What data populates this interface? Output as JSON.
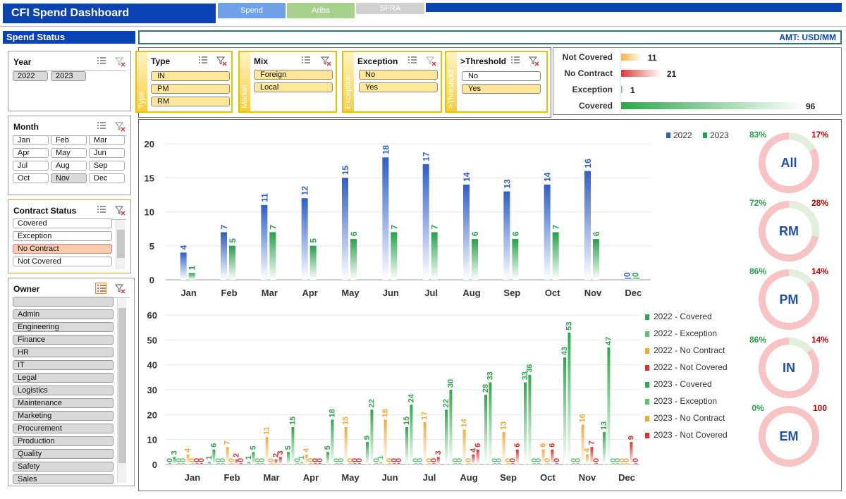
{
  "header": {
    "title": "CFI Spend Dashboard",
    "tabs": [
      {
        "label": "Spend",
        "color": "#6fa0e8"
      },
      {
        "label": "Ariba",
        "color": "#a9d18e"
      },
      {
        "label": "SFRA",
        "color": "#d0d0d0"
      }
    ]
  },
  "status": {
    "label": "Spend Status",
    "amt": "AMT: USD/MM"
  },
  "year": {
    "title": "Year",
    "items": [
      "2022",
      "2023"
    ]
  },
  "month": {
    "title": "Month",
    "items": [
      "Jan",
      "Feb",
      "Mar",
      "Apr",
      "May",
      "Jun",
      "Jul",
      "Aug",
      "Sep",
      "Oct",
      "Nov",
      "Dec"
    ],
    "selected": "Nov"
  },
  "contract": {
    "title": "Contract Status",
    "items": [
      "Covered",
      "Exception",
      "No Contract",
      "Not Covered"
    ],
    "selected": "No Contract"
  },
  "owner": {
    "title": "Owner",
    "items": [
      "",
      "Admin",
      "Engineering",
      "Finance",
      "HR",
      "IT",
      "Legal",
      "Logistics",
      "Maintenance",
      "Marketing",
      "Procurement",
      "Production",
      "Quality",
      "Safety",
      "Sales"
    ]
  },
  "type_slicer": {
    "title": "Type",
    "side": "Type",
    "items": [
      "IN",
      "PM",
      "RM"
    ]
  },
  "mix_slicer": {
    "title": "Mix",
    "side": "Market",
    "items": [
      "Foreign",
      "Local"
    ]
  },
  "exception_slicer": {
    "title": "Exception",
    "side": "Exception",
    "items": [
      "No",
      "Yes"
    ]
  },
  "threshold_slicer": {
    "title": ">Threshold",
    "side": ">Threshold",
    "items": [
      "No",
      "Yes"
    ],
    "highlighted": "Yes"
  },
  "status_bars": {
    "labels": [
      "Not Covered",
      "No Contract",
      "Exception",
      "Covered"
    ],
    "values": [
      11,
      21,
      1,
      96
    ],
    "colors": [
      "#f5b343",
      "#e03a3a",
      "#57b874",
      "#2ca84a"
    ]
  },
  "donuts": [
    {
      "label": "All",
      "left": "83%",
      "right": "17%",
      "pct": 17
    },
    {
      "label": "RM",
      "left": "72%",
      "right": "28%",
      "pct": 28
    },
    {
      "label": "PM",
      "left": "86%",
      "right": "14%",
      "pct": 14
    },
    {
      "label": "IN",
      "left": "86%",
      "right": "14%",
      "pct": 14
    },
    {
      "label": "EM",
      "left": "0%",
      "right": "100",
      "pct": 100
    }
  ],
  "chart_data": [
    {
      "type": "bar",
      "categories": [
        "Jan",
        "Feb",
        "Mar",
        "Apr",
        "May",
        "Jun",
        "Jul",
        "Aug",
        "Sep",
        "Oct",
        "Nov",
        "Dec"
      ],
      "series": [
        {
          "name": "2022",
          "values": [
            4,
            7,
            11,
            12,
            15,
            18,
            17,
            14,
            13,
            14,
            16,
            0
          ],
          "color": "#2e5fc7"
        },
        {
          "name": "2023",
          "values": [
            1,
            5,
            7,
            5,
            6,
            7,
            7,
            6,
            6,
            7,
            6,
            0
          ],
          "color": "#27a14a"
        }
      ],
      "ylim": [
        0,
        20
      ],
      "yticks": [
        0,
        5,
        10,
        15,
        20
      ],
      "legend": "top-right"
    },
    {
      "type": "bar",
      "categories": [
        "Jan",
        "Feb",
        "Mar",
        "Apr",
        "May",
        "Jun",
        "Jul",
        "Aug",
        "Sep",
        "Oct",
        "Nov",
        "Dec"
      ],
      "series": [
        {
          "name": "2022 - Covered",
          "values": [
            0,
            1,
            1,
            5,
            5,
            9,
            15,
            22,
            28,
            33,
            43,
            13
          ],
          "color": "#2ca84a"
        },
        {
          "name": "2022 - Exception",
          "values": [
            0,
            0,
            0,
            0,
            0,
            0,
            0,
            0,
            0,
            0,
            0,
            0
          ],
          "color": "#5cc46e"
        },
        {
          "name": "2022 - No Contract",
          "values": [
            4,
            7,
            11,
            4,
            15,
            18,
            17,
            14,
            13,
            6,
            16,
            0
          ],
          "color": "#f5a83a"
        },
        {
          "name": "2022 - Not Covered",
          "values": [
            0,
            2,
            2,
            0,
            0,
            0,
            0,
            4,
            0,
            6,
            7,
            9
          ],
          "color": "#d93030"
        },
        {
          "name": "2023 - Covered",
          "values": [
            3,
            6,
            5,
            15,
            18,
            22,
            24,
            30,
            33,
            36,
            53,
            47
          ],
          "color": "#2ca84a"
        },
        {
          "name": "2023 - Exception",
          "values": [
            0,
            0,
            0,
            1,
            0,
            1,
            0,
            0,
            0,
            0,
            0,
            0
          ],
          "color": "#5cc46e"
        },
        {
          "name": "2023 - No Contract",
          "values": [
            0,
            0,
            0,
            0,
            0,
            0,
            0,
            0,
            0,
            0,
            4,
            0
          ],
          "color": "#f5a83a"
        },
        {
          "name": "2023 - Not Covered",
          "values": [
            0,
            0,
            3,
            0,
            0,
            0,
            3,
            6,
            6,
            0,
            0,
            0
          ],
          "color": "#d93030"
        }
      ],
      "ylim": [
        0,
        60
      ],
      "yticks": [
        0,
        10,
        20,
        30,
        40,
        50,
        60
      ],
      "legend": "right"
    }
  ]
}
